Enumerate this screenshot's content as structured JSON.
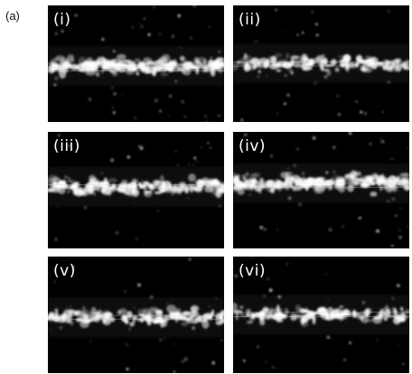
{
  "figure": {
    "label": "(a)"
  },
  "panels": [
    {
      "label": "(i)",
      "band_center": 0.52,
      "line_center": 0.55,
      "density": 1.15,
      "seed": 11
    },
    {
      "label": "(ii)",
      "band_center": 0.5,
      "line_center": 0.5,
      "density": 0.75,
      "seed": 23
    },
    {
      "label": "(iii)",
      "band_center": 0.47,
      "line_center": 0.47,
      "density": 0.95,
      "seed": 37
    },
    {
      "label": "(iv)",
      "band_center": 0.44,
      "line_center": 0.46,
      "density": 1.1,
      "seed": 41
    },
    {
      "label": "(v)",
      "band_center": 0.52,
      "line_center": 0.52,
      "density": 0.85,
      "seed": 53
    },
    {
      "label": "(vi)",
      "band_center": 0.5,
      "line_center": 0.5,
      "density": 0.8,
      "seed": 67
    }
  ],
  "colors": {
    "background": "#000000",
    "cell": "#ffffff",
    "line": "#cfd8d8"
  }
}
